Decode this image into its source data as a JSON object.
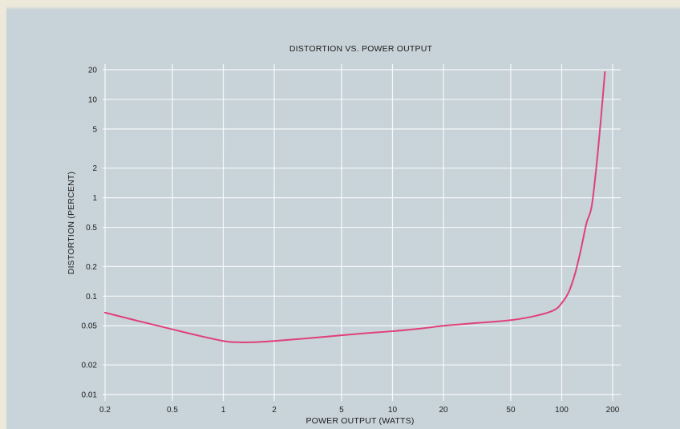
{
  "chart_data": {
    "type": "line",
    "title": "DISTORTION VS. POWER OUTPUT",
    "xlabel": "POWER OUTPUT (WATTS)",
    "ylabel": "DISTORTION (PERCENT)",
    "x_scale": "log",
    "y_scale": "log",
    "xlim": [
      0.2,
      200
    ],
    "ylim": [
      0.01,
      20
    ],
    "x_ticks": [
      0.2,
      0.5,
      1,
      2,
      5,
      10,
      20,
      50,
      100,
      200
    ],
    "x_tick_labels": [
      "0.2",
      "0.5",
      "1",
      "2",
      "5",
      "10",
      "20",
      "50",
      "100",
      "200"
    ],
    "y_ticks": [
      0.01,
      0.02,
      0.05,
      0.1,
      0.2,
      0.5,
      1,
      2,
      5,
      10,
      20
    ],
    "y_tick_labels": [
      "0.01",
      "0.02",
      "0.05",
      "0.1",
      "0.2",
      "0.5",
      "1",
      "2",
      "5",
      "10",
      "20"
    ],
    "grid": true,
    "line_color": "#e0407a",
    "series": [
      {
        "x": [
          0.2,
          0.3,
          0.5,
          0.7,
          1,
          1.2,
          1.5,
          2,
          3,
          5,
          7,
          10,
          15,
          20,
          30,
          50,
          70,
          90,
          100,
          110,
          120,
          130,
          140,
          150,
          160,
          170,
          180
        ],
        "y": [
          0.068,
          0.057,
          0.046,
          0.04,
          0.035,
          0.034,
          0.034,
          0.035,
          0.037,
          0.04,
          0.042,
          0.044,
          0.047,
          0.05,
          0.053,
          0.057,
          0.063,
          0.072,
          0.085,
          0.11,
          0.17,
          0.3,
          0.55,
          0.8,
          2,
          6,
          19
        ]
      }
    ]
  }
}
